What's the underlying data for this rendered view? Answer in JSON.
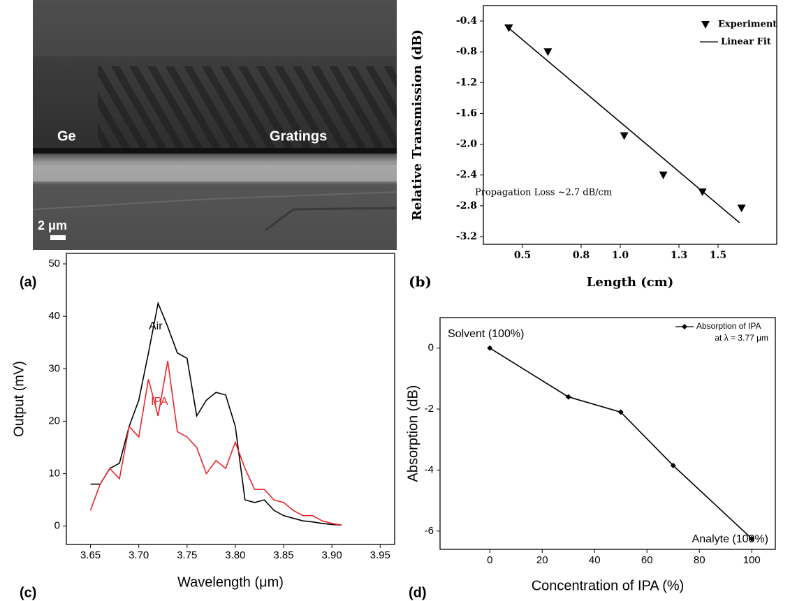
{
  "image_panel": {
    "panel_label": "(a)",
    "labels": [
      "Ge",
      "Gratings",
      "2 μm"
    ]
  },
  "chart_data": [
    {
      "type": "scatter",
      "panel_label": "(b)",
      "xlabel": "Length (cm)",
      "ylabel": "Relative Transmission (dB)",
      "xlim": [
        0.3,
        1.8
      ],
      "ylim": [
        -3.3,
        -0.2
      ],
      "xticks": [
        0.5,
        0.8,
        {
          "value": 1.0,
          "label": "1.0"
        },
        1.3,
        1.5
      ],
      "yticks": [
        -0.4,
        -0.8,
        -1.2,
        -1.6,
        {
          "value": -2.0,
          "label": "-2.0"
        },
        -2.4,
        -2.8,
        -3.2
      ],
      "annotations": [
        {
          "text": "Propagation Loss ~2.7 dB/cm",
          "color": "#000"
        }
      ],
      "series": [
        {
          "name": "Experiment",
          "color": "#000",
          "line": false,
          "marker": "triangle-down",
          "x": [
            0.43,
            0.63,
            1.02,
            1.22,
            1.42,
            1.62
          ],
          "values": [
            -0.49,
            -0.8,
            -1.89,
            -2.4,
            -2.62,
            -2.83
          ]
        },
        {
          "name": "Linear Fit",
          "color": "#000",
          "line": true,
          "marker": "none",
          "x": [
            0.41,
            1.61
          ],
          "values": [
            -0.45,
            -3.02
          ]
        }
      ]
    },
    {
      "type": "line",
      "panel_label": "(c)",
      "xlabel": "Wavelength (μm)",
      "ylabel": "Output (mV)",
      "xlim": [
        3.625,
        3.965
      ],
      "ylim": [
        -3.5,
        52
      ],
      "xticks": [
        3.65,
        {
          "value": 3.7,
          "label": "3.70"
        },
        3.75,
        {
          "value": 3.8,
          "label": "3.80"
        },
        3.85,
        {
          "value": 3.9,
          "label": "3.90"
        },
        3.95
      ],
      "yticks": [
        0,
        10,
        20,
        30,
        40,
        50
      ],
      "annotations": [
        {
          "text": "Air",
          "color": "#000"
        },
        {
          "text": "IPA",
          "color": "#e8262a"
        }
      ],
      "series": [
        {
          "name": "Air",
          "color": "#000",
          "line": true,
          "marker": "none",
          "x": [
            3.65,
            3.66,
            3.67,
            3.68,
            3.69,
            3.7,
            3.71,
            3.72,
            3.73,
            3.74,
            3.75,
            3.76,
            3.77,
            3.78,
            3.79,
            3.8,
            3.81,
            3.82,
            3.83,
            3.84,
            3.85,
            3.86,
            3.87,
            3.88,
            3.89,
            3.9,
            3.91
          ],
          "values": [
            8,
            8,
            11,
            12,
            19,
            24,
            33,
            42.5,
            38,
            33,
            32,
            21,
            24,
            25.5,
            25,
            19,
            5,
            4.5,
            5,
            3,
            2,
            1.5,
            1,
            0.8,
            0.5,
            0.3,
            0.2
          ]
        },
        {
          "name": "IPA",
          "color": "#e8262a",
          "line": true,
          "marker": "none",
          "x": [
            3.65,
            3.66,
            3.67,
            3.68,
            3.69,
            3.7,
            3.71,
            3.72,
            3.73,
            3.74,
            3.75,
            3.76,
            3.77,
            3.78,
            3.79,
            3.8,
            3.81,
            3.82,
            3.83,
            3.84,
            3.85,
            3.86,
            3.87,
            3.88,
            3.89,
            3.9,
            3.91
          ],
          "values": [
            3,
            8,
            11,
            9,
            19,
            17,
            28,
            21,
            31.5,
            18,
            17,
            15,
            10,
            12.5,
            11,
            16,
            11,
            7,
            7,
            5,
            4.5,
            3,
            2,
            2,
            1,
            0.5,
            0.2
          ]
        }
      ]
    },
    {
      "type": "line",
      "panel_label": "(d)",
      "xlabel": "Concentration of IPA (%)",
      "ylabel": "Absorption (dB)",
      "xlim": [
        -19,
        109
      ],
      "ylim": [
        -6.6,
        1
      ],
      "xticks": [
        0,
        20,
        40,
        60,
        80,
        100
      ],
      "yticks": [
        0,
        -2,
        -4,
        -6
      ],
      "annotations": [
        {
          "text": "Solvent (100%)",
          "color": "#000"
        },
        {
          "text": "Analyte (100%)",
          "color": "#000"
        }
      ],
      "legend_note": "at λ = 3.77 μm",
      "series": [
        {
          "name": "Absorption of IPA",
          "color": "#000",
          "line": true,
          "marker": "diamond",
          "x": [
            0,
            30,
            50,
            70,
            100
          ],
          "values": [
            0,
            -1.6,
            -2.1,
            -3.85,
            -6.25
          ]
        }
      ]
    }
  ]
}
